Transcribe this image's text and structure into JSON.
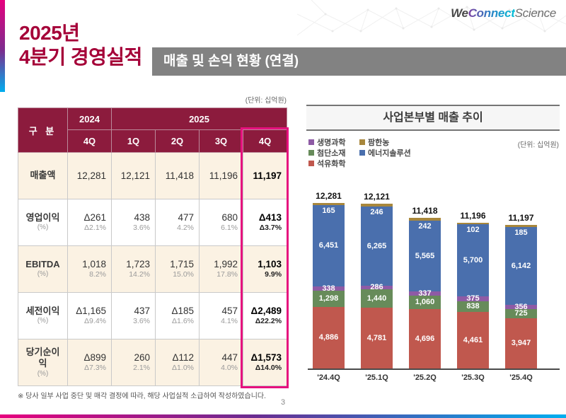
{
  "slide": {
    "title_line1": "2025년",
    "title_line2": "4분기 경영실적",
    "section_title": "매출 및 손익 현황 (연결)",
    "logo": {
      "part1": "We",
      "part2": "Connect",
      "part3": "Science"
    },
    "footnote": "※ 당사 일부 사업 중단 및 매각 결정에 따라, 해당 사업실적 소급하여 작성하였습니다.",
    "page_number": "3",
    "accent_colors": {
      "title_red": "#a50038",
      "header_maroon": "#8c1b3d",
      "highlight_pink": "#e6117e",
      "section_gray": "#828282"
    }
  },
  "table": {
    "unit_label": "(단위: 십억원)",
    "corner_label": "구 분",
    "year_2024": "2024",
    "year_2025": "2025",
    "quarter_headers": [
      "4Q",
      "1Q",
      "2Q",
      "3Q",
      "4Q"
    ],
    "rows": [
      {
        "label": "매출액",
        "sub": "",
        "values": [
          "12,281",
          "12,121",
          "11,418",
          "11,196",
          "11,197"
        ],
        "pcts": [
          "",
          "",
          "",
          "",
          ""
        ]
      },
      {
        "label": "영업이익",
        "sub": "(%)",
        "values": [
          "Δ261",
          "438",
          "477",
          "680",
          "Δ413"
        ],
        "pcts": [
          "Δ2.1%",
          "3.6%",
          "4.2%",
          "6.1%",
          "Δ3.7%"
        ]
      },
      {
        "label": "EBITDA",
        "sub": "(%)",
        "values": [
          "1,018",
          "1,723",
          "1,715",
          "1,992",
          "1,103"
        ],
        "pcts": [
          "8.2%",
          "14.2%",
          "15.0%",
          "17.8%",
          "9.9%"
        ]
      },
      {
        "label": "세전이익",
        "sub": "(%)",
        "values": [
          "Δ1,165",
          "437",
          "Δ185",
          "457",
          "Δ2,489"
        ],
        "pcts": [
          "Δ9.4%",
          "3.6%",
          "Δ1.6%",
          "4.1%",
          "Δ22.2%"
        ]
      },
      {
        "label": "당기순이익",
        "sub": "(%)",
        "values": [
          "Δ899",
          "260",
          "Δ112",
          "447",
          "Δ1,573"
        ],
        "pcts": [
          "Δ7.3%",
          "2.1%",
          "Δ1.0%",
          "4.0%",
          "Δ14.0%"
        ]
      }
    ]
  },
  "chart_data": {
    "type": "bar",
    "subtype": "stacked",
    "title": "사업본부별 매출 추이",
    "unit_label": "(단위: 십억원)",
    "categories": [
      "'24.4Q",
      "'25.1Q",
      "'25.2Q",
      "'25.3Q",
      "'25.4Q"
    ],
    "totals": [
      12281,
      12121,
      11418,
      11196,
      11197
    ],
    "series": [
      {
        "name": "석유화학",
        "color": "#c0584e",
        "values": [
          4886,
          4781,
          4696,
          4461,
          3947
        ]
      },
      {
        "name": "첨단소재",
        "color": "#678b5a",
        "values": [
          1298,
          1440,
          1060,
          838,
          725
        ]
      },
      {
        "name": "생명과학",
        "color": "#8e5ba5",
        "values": [
          338,
          286,
          337,
          375,
          356
        ]
      },
      {
        "name": "에너지솔루션",
        "color": "#4a6fad",
        "values": [
          6451,
          6265,
          5565,
          5700,
          6142
        ]
      },
      {
        "name": "팜한농",
        "color": "#a8873c",
        "values": [
          165,
          246,
          242,
          102,
          185
        ]
      }
    ],
    "legend_columns": [
      [
        "생명과학",
        "첨단소재",
        "석유화학"
      ],
      [
        "팜한농",
        "에너지솔루션"
      ]
    ],
    "layout": {
      "grid": false,
      "legend_position": "top-left",
      "value_labels": "inside-white"
    }
  }
}
